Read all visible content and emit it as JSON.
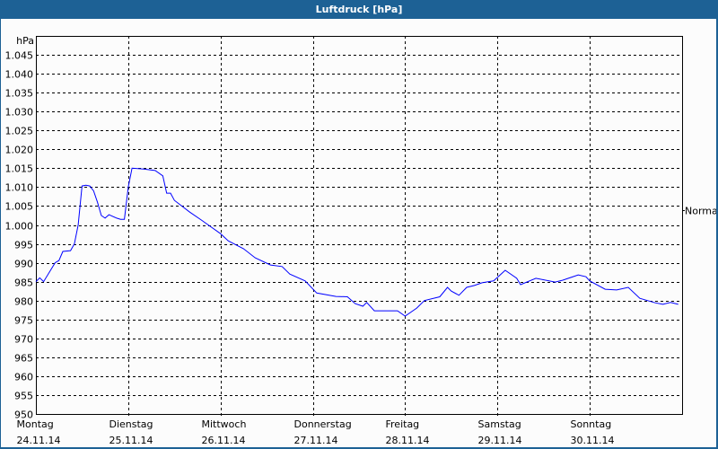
{
  "window": {
    "title": "Luftdruck [hPa]"
  },
  "chart_data": {
    "type": "line",
    "title": "Luftdruck [hPa]",
    "ylabel": "hPa",
    "ylim": [
      950,
      1050
    ],
    "yticks": [
      950,
      955,
      960,
      965,
      970,
      975,
      980,
      985,
      990,
      995,
      1000,
      1005,
      1010,
      1015,
      1020,
      1025,
      1030,
      1035,
      1040,
      1045
    ],
    "ytick_labels": [
      "950",
      "955",
      "960",
      "965",
      "970",
      "975",
      "980",
      "985",
      "990",
      "995",
      "1.000",
      "1.005",
      "1.010",
      "1.015",
      "1.020",
      "1.025",
      "1.030",
      "1.035",
      "1.040",
      "1.045"
    ],
    "xlim": [
      "2014-11-24 00:00",
      "2014-12-01 00:00"
    ],
    "xticks": [
      {
        "day": "Montag",
        "date": "24.11.14"
      },
      {
        "day": "Dienstag",
        "date": "25.11.14"
      },
      {
        "day": "Mittwoch",
        "date": "26.11.14"
      },
      {
        "day": "Donnerstag",
        "date": "27.11.14"
      },
      {
        "day": "Freitag",
        "date": "28.11.14"
      },
      {
        "day": "Samstag",
        "date": "29.11.14"
      },
      {
        "day": "Sonntag",
        "date": "30.11.14"
      }
    ],
    "grid": true,
    "reference_marker": {
      "label": "Normal",
      "value": 1004
    },
    "line_color": "#0000ff",
    "series": [
      {
        "points": [
          [
            "2014-11-24 00:00",
            985
          ],
          [
            "2014-11-24 01:00",
            986
          ],
          [
            "2014-11-24 02:00",
            985
          ],
          [
            "2014-11-24 05:00",
            990
          ],
          [
            "2014-11-24 06:00",
            990.6
          ],
          [
            "2014-11-24 07:00",
            993
          ],
          [
            "2014-11-24 09:00",
            993.2
          ],
          [
            "2014-11-24 10:00",
            995
          ],
          [
            "2014-11-24 11:00",
            1000
          ],
          [
            "2014-11-24 12:00",
            1010.3
          ],
          [
            "2014-11-24 13:00",
            1010.5
          ],
          [
            "2014-11-24 14:00",
            1010.3
          ],
          [
            "2014-11-24 15:00",
            1009
          ],
          [
            "2014-11-24 16:00",
            1006
          ],
          [
            "2014-11-24 17:00",
            1002.5
          ],
          [
            "2014-11-24 18:00",
            1001.8
          ],
          [
            "2014-11-24 19:00",
            1002.7
          ],
          [
            "2014-11-24 21:00",
            1001.8
          ],
          [
            "2014-11-24 22:00",
            1001.5
          ],
          [
            "2014-11-24 23:00",
            1001.5
          ],
          [
            "2014-11-25 00:00",
            1010
          ],
          [
            "2014-11-25 01:00",
            1015
          ],
          [
            "2014-11-25 04:00",
            1014.8
          ],
          [
            "2014-11-25 07:00",
            1014.4
          ],
          [
            "2014-11-25 09:00",
            1013
          ],
          [
            "2014-11-25 10:00",
            1008.4
          ],
          [
            "2014-11-25 11:00",
            1008.4
          ],
          [
            "2014-11-25 12:00",
            1006.5
          ],
          [
            "2014-11-25 16:00",
            1003.4
          ],
          [
            "2014-11-25 19:00",
            1001.3
          ],
          [
            "2014-11-26 00:00",
            997.7
          ],
          [
            "2014-11-26 02:00",
            995.8
          ],
          [
            "2014-11-26 06:00",
            993.7
          ],
          [
            "2014-11-26 09:00",
            991.3
          ],
          [
            "2014-11-26 13:00",
            989.4
          ],
          [
            "2014-11-26 16:00",
            989
          ],
          [
            "2014-11-26 18:00",
            987
          ],
          [
            "2014-11-26 22:00",
            985.2
          ],
          [
            "2014-11-27 01:00",
            982
          ],
          [
            "2014-11-27 06:00",
            981.1
          ],
          [
            "2014-11-27 09:00",
            981
          ],
          [
            "2014-11-27 11:00",
            979.2
          ],
          [
            "2014-11-27 13:00",
            978.5
          ],
          [
            "2014-11-27 14:00",
            979.5
          ],
          [
            "2014-11-27 16:00",
            977.3
          ],
          [
            "2014-11-27 22:00",
            977.3
          ],
          [
            "2014-11-28 00:00",
            975.9
          ],
          [
            "2014-11-28 03:00",
            978
          ],
          [
            "2014-11-28 05:00",
            980
          ],
          [
            "2014-11-28 09:00",
            981
          ],
          [
            "2014-11-28 11:00",
            983.5
          ],
          [
            "2014-11-28 12:00",
            982.5
          ],
          [
            "2014-11-28 14:00",
            981.4
          ],
          [
            "2014-11-28 16:00",
            983.5
          ],
          [
            "2014-11-28 18:00",
            984
          ],
          [
            "2014-11-28 20:00",
            984.7
          ],
          [
            "2014-11-28 23:00",
            985.2
          ],
          [
            "2014-11-29 02:00",
            988
          ],
          [
            "2014-11-29 05:00",
            985.9
          ],
          [
            "2014-11-29 06:00",
            984.2
          ],
          [
            "2014-11-29 10:00",
            985.9
          ],
          [
            "2014-11-29 15:00",
            984.9
          ],
          [
            "2014-11-29 17:00",
            985.4
          ],
          [
            "2014-11-29 21:00",
            986.8
          ],
          [
            "2014-11-29 23:00",
            986.3
          ],
          [
            "2014-11-30 00:00",
            985.2
          ],
          [
            "2014-11-30 04:00",
            983
          ],
          [
            "2014-11-30 07:00",
            982.8
          ],
          [
            "2014-11-30 10:00",
            983.5
          ],
          [
            "2014-11-30 13:00",
            980.6
          ],
          [
            "2014-11-30 17:00",
            979.4
          ],
          [
            "2014-11-30 19:00",
            979
          ],
          [
            "2014-11-30 21:00",
            979.5
          ],
          [
            "2014-11-30 23:00",
            979
          ]
        ]
      }
    ]
  }
}
